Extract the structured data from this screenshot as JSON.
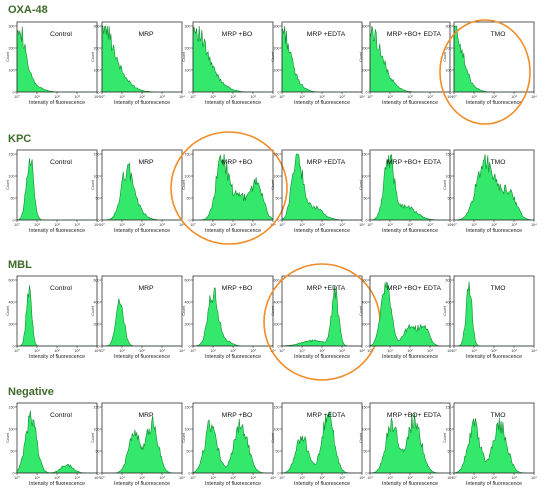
{
  "panel_titles": [
    "OXA-48",
    "KPC",
    "MBL",
    "Negative"
  ],
  "colors": {
    "fill": "#33e86a",
    "edge": "#0c8a2e",
    "frame": "#333333",
    "circle": "#f28c28",
    "title": "#3e6b2a"
  },
  "chart_data": {
    "type": "area",
    "x_scale": "log",
    "xlim": [
      1,
      10000
    ],
    "x_ticks": [
      "10⁰",
      "10¹",
      "10²",
      "10³",
      "10⁴"
    ],
    "xlabel": "Intensity of fluorescence",
    "ylabel": "Count",
    "conditions": [
      "Control",
      "MRP",
      "MRP +BO",
      "MRP +EDTA",
      "MRP +BO+ EDTA",
      "TMO"
    ],
    "panels": [
      {
        "title": "OXA-48",
        "ymax": 300,
        "y_ticks": [
          "0",
          "100",
          "200",
          "300"
        ],
        "circled": [
          5
        ],
        "histograms": [
          {
            "label": "Control",
            "peaks": [
              [
                0.0,
                0.35,
                1.0
              ],
              [
                0.6,
                0.5,
                0.12
              ]
            ]
          },
          {
            "label": "MRP",
            "peaks": [
              [
                0.0,
                0.5,
                0.95
              ],
              [
                0.8,
                0.6,
                0.2
              ]
            ]
          },
          {
            "label": "MRP +BO",
            "peaks": [
              [
                0.0,
                0.55,
                0.9
              ],
              [
                0.9,
                0.6,
                0.2
              ]
            ]
          },
          {
            "label": "MRP +EDTA",
            "peaks": [
              [
                0.0,
                0.35,
                0.9
              ],
              [
                0.6,
                0.4,
                0.15
              ]
            ]
          },
          {
            "label": "MRP +BO+ EDTA",
            "peaks": [
              [
                0.0,
                0.45,
                0.85
              ],
              [
                0.7,
                0.5,
                0.2
              ]
            ]
          },
          {
            "label": "TMO",
            "peaks": [
              [
                0.0,
                0.35,
                0.95
              ],
              [
                0.6,
                0.4,
                0.15
              ]
            ]
          }
        ]
      },
      {
        "title": "KPC",
        "ymax": 150,
        "y_ticks": [
          "0",
          "50",
          "100",
          "150"
        ],
        "circled": [
          2
        ],
        "histograms": [
          {
            "label": "Control",
            "peaks": [
              [
                0.65,
                0.18,
                0.95
              ]
            ]
          },
          {
            "label": "MRP",
            "peaks": [
              [
                1.25,
                0.3,
                0.7
              ],
              [
                1.7,
                0.4,
                0.15
              ]
            ]
          },
          {
            "label": "MRP +BO",
            "peaks": [
              [
                1.45,
                0.3,
                0.9
              ],
              [
                2.3,
                0.4,
                0.35
              ],
              [
                3.2,
                0.3,
                0.55
              ]
            ]
          },
          {
            "label": "MRP +EDTA",
            "peaks": [
              [
                0.75,
                0.25,
                0.95
              ],
              [
                1.5,
                0.5,
                0.2
              ]
            ]
          },
          {
            "label": "MRP +BO+ EDTA",
            "peaks": [
              [
                0.95,
                0.25,
                0.9
              ],
              [
                1.8,
                0.5,
                0.2
              ]
            ]
          },
          {
            "label": "TMO",
            "peaks": [
              [
                1.5,
                0.4,
                0.85
              ],
              [
                2.4,
                0.45,
                0.35
              ],
              [
                2.9,
                0.3,
                0.2
              ]
            ]
          }
        ]
      },
      {
        "title": "MBL",
        "ymax": 600,
        "y_ticks": [
          "0",
          "200",
          "400",
          "600"
        ],
        "circled": [
          3
        ],
        "histograms": [
          {
            "label": "Control",
            "peaks": [
              [
                0.6,
                0.13,
                0.9
              ]
            ]
          },
          {
            "label": "MRP",
            "peaks": [
              [
                0.9,
                0.2,
                0.65
              ]
            ]
          },
          {
            "label": "MRP +BO",
            "peaks": [
              [
                1.0,
                0.25,
                0.8
              ],
              [
                1.6,
                0.3,
                0.08
              ]
            ]
          },
          {
            "label": "MRP +EDTA",
            "peaks": [
              [
                2.65,
                0.17,
                0.8
              ],
              [
                1.6,
                0.6,
                0.08
              ]
            ]
          },
          {
            "label": "MRP +BO+ EDTA",
            "peaks": [
              [
                0.8,
                0.25,
                0.95
              ],
              [
                2.0,
                0.3,
                0.3
              ],
              [
                2.7,
                0.25,
                0.3
              ]
            ]
          },
          {
            "label": "TMO",
            "peaks": [
              [
                0.75,
                0.15,
                0.9
              ]
            ]
          }
        ]
      },
      {
        "title": "Negative",
        "ymax": 150,
        "y_ticks": [
          "0",
          "50",
          "100",
          "150"
        ],
        "circled": [],
        "histograms": [
          {
            "label": "Control",
            "peaks": [
              [
                0.7,
                0.28,
                0.85
              ],
              [
                2.5,
                0.3,
                0.12
              ]
            ]
          },
          {
            "label": "MRP",
            "peaks": [
              [
                1.6,
                0.28,
                0.6
              ],
              [
                2.5,
                0.3,
                0.75
              ]
            ]
          },
          {
            "label": "MRP +BO",
            "peaks": [
              [
                0.9,
                0.3,
                0.75
              ],
              [
                2.4,
                0.35,
                0.72
              ]
            ]
          },
          {
            "label": "MRP +EDTA",
            "peaks": [
              [
                1.0,
                0.3,
                0.55
              ],
              [
                2.3,
                0.3,
                0.85
              ]
            ]
          },
          {
            "label": "MRP +BO+ EDTA",
            "peaks": [
              [
                1.1,
                0.3,
                0.75
              ],
              [
                2.2,
                0.35,
                0.8
              ]
            ]
          },
          {
            "label": "TMO",
            "peaks": [
              [
                1.0,
                0.3,
                0.72
              ],
              [
                2.3,
                0.35,
                0.72
              ]
            ]
          }
        ]
      }
    ]
  }
}
